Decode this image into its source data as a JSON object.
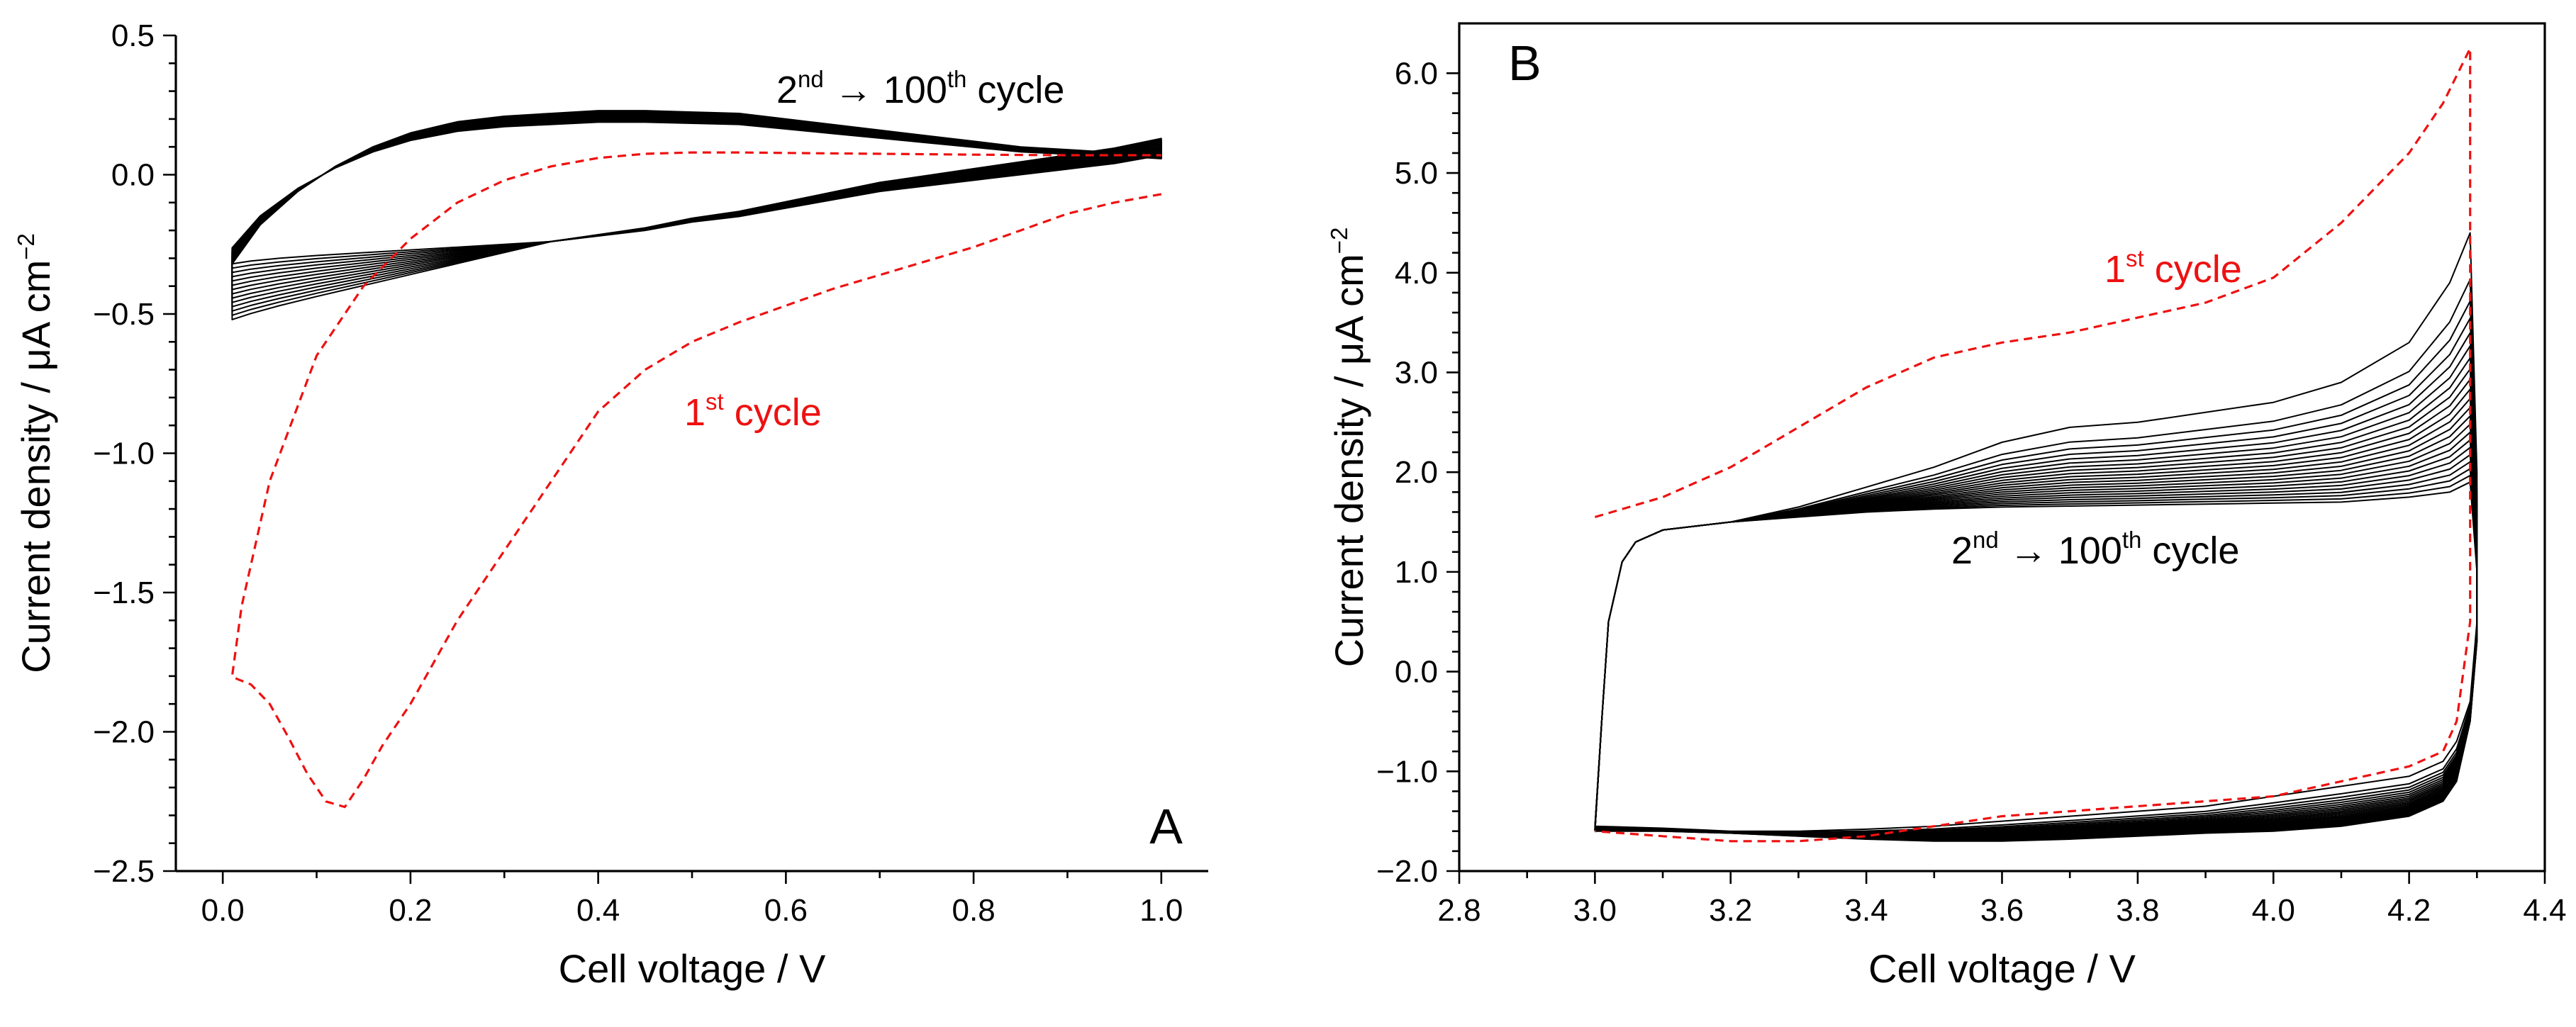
{
  "chart_data": [
    {
      "type": "line",
      "panel_label": "A",
      "xlabel": "Cell voltage / V",
      "ylabel": "Current density / μA cm−2",
      "xlim": [
        -0.05,
        1.05
      ],
      "ylim": [
        -2.5,
        0.5
      ],
      "x_ticks": [
        0.0,
        0.2,
        0.4,
        0.6,
        0.8,
        1.0
      ],
      "x_tick_labels": [
        "0.0",
        "0.2",
        "0.4",
        "0.6",
        "0.8",
        "1.0"
      ],
      "y_ticks": [
        0.5,
        0.0,
        -0.5,
        -1.0,
        -1.5,
        -2.0,
        -2.5
      ],
      "y_tick_labels": [
        "0.5",
        "0.0",
        "−0.5",
        "−1.0",
        "−1.5",
        "−2.0",
        "−2.5"
      ],
      "annotations": [
        {
          "base": "2",
          "sup": "nd",
          "rest": " → 100",
          "sup2": "th",
          "tail": " cycle",
          "color": "#000000"
        },
        {
          "base": "1",
          "sup": "st",
          "rest": " cycle",
          "color": "#ee1111"
        }
      ],
      "series": [
        {
          "name": "1st cycle",
          "style": "dashed",
          "color": "#ee1111",
          "x": [
            1.0,
            0.95,
            0.9,
            0.85,
            0.8,
            0.75,
            0.7,
            0.65,
            0.6,
            0.55,
            0.5,
            0.45,
            0.4,
            0.35,
            0.3,
            0.25,
            0.22,
            0.2,
            0.17,
            0.15,
            0.13,
            0.11,
            0.09,
            0.07,
            0.05,
            0.03,
            0.015,
            0.01,
            0.02,
            0.05,
            0.1,
            0.15,
            0.2,
            0.25,
            0.3,
            0.35,
            0.4,
            0.45,
            0.5,
            0.55,
            0.6,
            0.7,
            0.8,
            0.9,
            1.0
          ],
          "y": [
            -0.07,
            -0.1,
            -0.14,
            -0.2,
            -0.26,
            -0.31,
            -0.36,
            -0.41,
            -0.47,
            -0.53,
            -0.6,
            -0.7,
            -0.85,
            -1.1,
            -1.35,
            -1.6,
            -1.78,
            -1.9,
            -2.05,
            -2.17,
            -2.27,
            -2.25,
            -2.15,
            -2.02,
            -1.9,
            -1.83,
            -1.81,
            -1.8,
            -1.55,
            -1.1,
            -0.65,
            -0.4,
            -0.23,
            -0.1,
            -0.02,
            0.03,
            0.06,
            0.075,
            0.08,
            0.08,
            0.078,
            0.075,
            0.072,
            0.07,
            0.07
          ]
        },
        {
          "name": "2nd → 100th cycle",
          "style": "solid",
          "color": "#000000",
          "upper_x": [
            0.01,
            0.04,
            0.08,
            0.12,
            0.16,
            0.2,
            0.25,
            0.3,
            0.35,
            0.4,
            0.45,
            0.5,
            0.55,
            0.6,
            0.65,
            0.7,
            0.75,
            0.8,
            0.85,
            0.9,
            0.95,
            0.98,
            1.0
          ],
          "upper_y": [
            -0.32,
            -0.18,
            -0.06,
            0.03,
            0.1,
            0.15,
            0.19,
            0.21,
            0.22,
            0.23,
            0.23,
            0.225,
            0.22,
            0.2,
            0.18,
            0.16,
            0.14,
            0.12,
            0.1,
            0.09,
            0.08,
            0.075,
            0.07
          ],
          "lower_x": [
            1.0,
            0.95,
            0.9,
            0.85,
            0.8,
            0.75,
            0.7,
            0.65,
            0.6,
            0.55,
            0.5,
            0.45,
            0.4,
            0.35,
            0.3,
            0.25,
            0.2,
            0.15,
            0.1,
            0.06,
            0.03,
            0.01
          ],
          "lower_y": [
            0.07,
            0.04,
            0.02,
            0.0,
            -0.02,
            -0.04,
            -0.06,
            -0.09,
            -0.12,
            -0.15,
            -0.17,
            -0.2,
            -0.22,
            -0.24,
            -0.25,
            -0.26,
            -0.27,
            -0.28,
            -0.29,
            -0.3,
            -0.31,
            -0.32
          ]
        }
      ]
    },
    {
      "type": "line",
      "panel_label": "B",
      "xlabel": "Cell voltage / V",
      "ylabel": "Current density / μA cm−2",
      "xlim": [
        2.8,
        4.4
      ],
      "ylim": [
        -2.0,
        6.5
      ],
      "x_ticks": [
        2.8,
        3.0,
        3.2,
        3.4,
        3.6,
        3.8,
        4.0,
        4.2,
        4.4
      ],
      "x_tick_labels": [
        "2.8",
        "3.0",
        "3.2",
        "3.4",
        "3.6",
        "3.8",
        "4.0",
        "4.2",
        "4.4"
      ],
      "y_ticks": [
        6.0,
        5.0,
        4.0,
        3.0,
        2.0,
        1.0,
        0.0,
        -1.0,
        -2.0
      ],
      "y_tick_labels": [
        "6.0",
        "5.0",
        "4.0",
        "3.0",
        "2.0",
        "1.0",
        "0.0",
        "−1.0",
        "−2.0"
      ],
      "annotations": [
        {
          "base": "1",
          "sup": "st",
          "rest": " cycle",
          "color": "#ee1111"
        },
        {
          "base": "2",
          "sup": "nd",
          "rest": " → 100",
          "sup2": "th",
          "tail": " cycle",
          "color": "#000000"
        }
      ],
      "series": [
        {
          "name": "1st cycle",
          "style": "dashed",
          "color": "#ee1111",
          "x": [
            3.0,
            3.1,
            3.2,
            3.3,
            3.4,
            3.5,
            3.6,
            3.7,
            3.8,
            3.9,
            4.0,
            4.1,
            4.2,
            4.25,
            4.29,
            4.29,
            4.29,
            4.27,
            4.25,
            4.2,
            4.1,
            4.0,
            3.9,
            3.8,
            3.7,
            3.6,
            3.5,
            3.4,
            3.3,
            3.2,
            3.1,
            3.0
          ],
          "y": [
            1.55,
            1.75,
            2.05,
            2.45,
            2.85,
            3.15,
            3.3,
            3.4,
            3.55,
            3.7,
            3.95,
            4.5,
            5.2,
            5.7,
            6.25,
            2.0,
            0.5,
            -0.5,
            -0.8,
            -0.95,
            -1.1,
            -1.25,
            -1.3,
            -1.35,
            -1.4,
            -1.45,
            -1.55,
            -1.65,
            -1.7,
            -1.7,
            -1.65,
            -1.6
          ]
        },
        {
          "name": "2nd → 100th cycle",
          "style": "solid",
          "color": "#000000",
          "x_base": [
            3.0,
            3.01,
            3.02,
            3.04,
            3.06,
            3.1,
            3.2,
            3.3,
            3.4,
            3.5,
            3.6,
            3.7,
            3.8,
            3.9,
            4.0,
            4.1,
            4.2,
            4.26,
            4.29,
            4.3,
            4.3,
            4.29,
            4.27,
            4.25,
            4.2,
            4.1,
            4.0,
            3.9,
            3.8,
            3.7,
            3.6,
            3.5,
            3.4,
            3.3,
            3.2,
            3.1,
            3.0
          ],
          "y_first": [
            -1.55,
            -0.5,
            0.5,
            1.1,
            1.3,
            1.42,
            1.5,
            1.65,
            1.85,
            2.05,
            2.3,
            2.45,
            2.5,
            2.6,
            2.7,
            2.9,
            3.3,
            3.9,
            4.4,
            2.0,
            0.5,
            -0.3,
            -0.7,
            -0.9,
            -1.05,
            -1.15,
            -1.25,
            -1.35,
            -1.4,
            -1.45,
            -1.5,
            -1.55,
            -1.58,
            -1.6,
            -1.6,
            -1.57,
            -1.55
          ],
          "y_last": [
            -1.6,
            -0.5,
            0.5,
            1.1,
            1.3,
            1.42,
            1.5,
            1.55,
            1.6,
            1.63,
            1.65,
            1.66,
            1.67,
            1.68,
            1.69,
            1.7,
            1.75,
            1.8,
            1.9,
            1.0,
            0.3,
            -0.5,
            -1.1,
            -1.3,
            -1.45,
            -1.55,
            -1.6,
            -1.62,
            -1.65,
            -1.68,
            -1.7,
            -1.7,
            -1.68,
            -1.65,
            -1.62,
            -1.6,
            -1.6
          ]
        }
      ]
    }
  ]
}
